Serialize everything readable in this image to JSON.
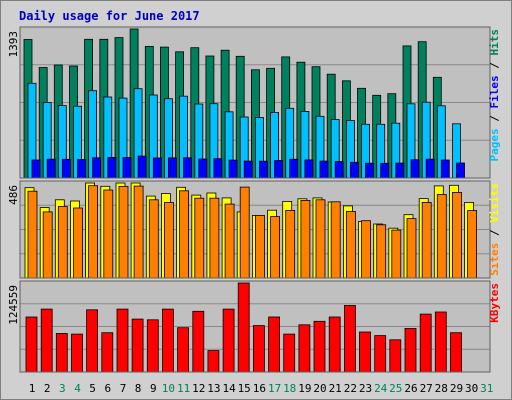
{
  "title": "Daily usage for June 2017",
  "colors": {
    "frame": "#d0d0d0",
    "plot": "#c0c0c0",
    "hits": "#00805c",
    "files": "#00c0ff",
    "pages": "#0000ff",
    "visits": "#ffff00",
    "sites": "#ff8000",
    "kbytes": "#ff0000",
    "weekday": "#000000",
    "weekend": "#00805c",
    "title": "#0000c0"
  },
  "right_labels": {
    "top": [
      {
        "text": "Pages",
        "color": "#00c0ff"
      },
      {
        "text": " / ",
        "color": "#000000"
      },
      {
        "text": "Files",
        "color": "#0000ff"
      },
      {
        "text": " / ",
        "color": "#000000"
      },
      {
        "text": "Hits",
        "color": "#00805c"
      }
    ],
    "middle": [
      {
        "text": "Sites",
        "color": "#ff8000"
      },
      {
        "text": " / ",
        "color": "#000000"
      },
      {
        "text": "Visits",
        "color": "#ffff00"
      }
    ],
    "bottom": [
      {
        "text": "KBytes",
        "color": "#ff0000"
      }
    ]
  },
  "chart_data": [
    {
      "type": "bar",
      "panel": "hits-files-pages",
      "ymax_label": "1393",
      "ylim": [
        0,
        1393
      ],
      "grid": true,
      "categories": [
        "1",
        "2",
        "3",
        "4",
        "5",
        "6",
        "7",
        "8",
        "9",
        "10",
        "11",
        "12",
        "13",
        "14",
        "15",
        "16",
        "17",
        "18",
        "19",
        "20",
        "21",
        "22",
        "23",
        "24",
        "25",
        "26",
        "27",
        "28",
        "29",
        "30",
        "31"
      ],
      "weekend_days": [
        "3",
        "4",
        "10",
        "11",
        "17",
        "18",
        "24",
        "25",
        "31"
      ],
      "series": [
        {
          "name": "Hits",
          "values": [
            1295,
            1033,
            1056,
            1047,
            1297,
            1297,
            1313,
            1393,
            1230,
            1224,
            1180,
            1218,
            1141,
            1195,
            1138,
            1012,
            1026,
            1132,
            1083,
            1041,
            970,
            909,
            839,
            773,
            788,
            1235,
            1274,
            941,
            0,
            0,
            0
          ]
        },
        {
          "name": "Files",
          "values": [
            885,
            705,
            677,
            671,
            816,
            757,
            747,
            835,
            776,
            741,
            765,
            692,
            695,
            619,
            570,
            567,
            612,
            652,
            623,
            577,
            546,
            538,
            502,
            502,
            512,
            694,
            709,
            675,
            507,
            0,
            0
          ]
        },
        {
          "name": "Pages",
          "values": [
            168,
            176,
            175,
            173,
            189,
            193,
            191,
            205,
            187,
            188,
            189,
            178,
            180,
            167,
            158,
            157,
            164,
            175,
            169,
            158,
            154,
            147,
            138,
            137,
            139,
            171,
            176,
            168,
            140,
            0,
            0
          ]
        }
      ]
    },
    {
      "type": "bar",
      "panel": "visits-sites",
      "ymax_label": "486",
      "ylim": [
        0,
        486
      ],
      "grid": true,
      "categories": [
        "1",
        "2",
        "3",
        "4",
        "5",
        "6",
        "7",
        "8",
        "9",
        "10",
        "11",
        "12",
        "13",
        "14",
        "15",
        "16",
        "17",
        "18",
        "19",
        "20",
        "21",
        "22",
        "23",
        "24",
        "25",
        "26",
        "27",
        "28",
        "29",
        "30",
        "31"
      ],
      "series": [
        {
          "name": "Visits",
          "values": [
            462,
            360,
            400,
            394,
            486,
            469,
            486,
            486,
            419,
            432,
            464,
            424,
            435,
            410,
            338,
            320,
            347,
            392,
            405,
            410,
            389,
            369,
            289,
            276,
            255,
            324,
            406,
            471,
            474,
            387,
            0
          ]
        },
        {
          "name": "Sites",
          "values": [
            444,
            338,
            366,
            358,
            472,
            450,
            468,
            470,
            400,
            386,
            446,
            408,
            408,
            378,
            465,
            320,
            314,
            346,
            397,
            400,
            390,
            340,
            293,
            272,
            245,
            304,
            387,
            427,
            438,
            345,
            0
          ]
        }
      ]
    },
    {
      "type": "bar",
      "panel": "kbytes",
      "ymax_label": "124559",
      "ylim": [
        0,
        124559
      ],
      "grid": true,
      "categories": [
        "1",
        "2",
        "3",
        "4",
        "5",
        "6",
        "7",
        "8",
        "9",
        "10",
        "11",
        "12",
        "13",
        "14",
        "15",
        "16",
        "17",
        "18",
        "19",
        "20",
        "21",
        "22",
        "23",
        "24",
        "25",
        "26",
        "27",
        "28",
        "29",
        "30",
        "31"
      ],
      "series": [
        {
          "name": "KBytes",
          "values": [
            77000,
            88000,
            54000,
            53000,
            87000,
            55000,
            88000,
            74000,
            73000,
            88000,
            62000,
            85000,
            30000,
            88000,
            124559,
            65000,
            77000,
            53000,
            66000,
            71000,
            77000,
            93000,
            56000,
            51000,
            45000,
            61000,
            81000,
            84000,
            55000,
            0,
            0
          ]
        }
      ]
    }
  ]
}
